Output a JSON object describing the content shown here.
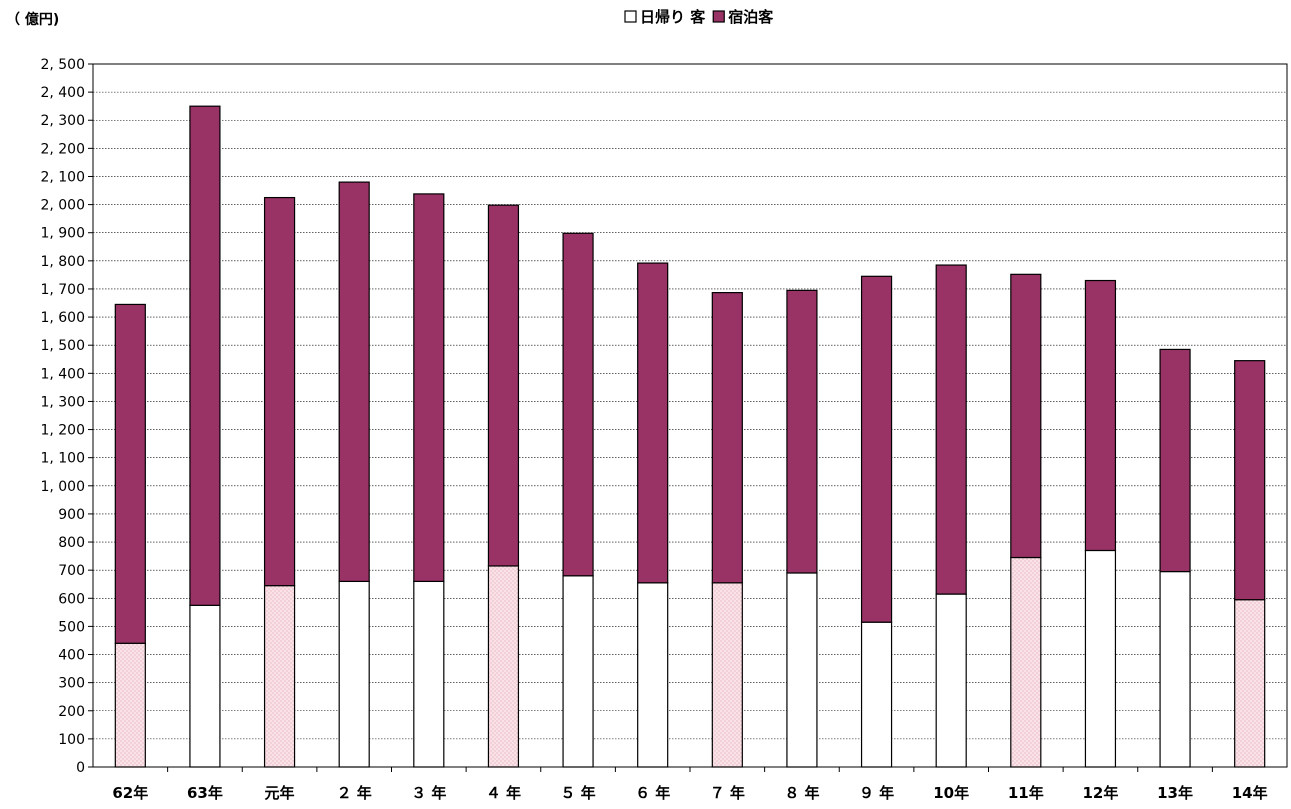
{
  "chart_data": {
    "type": "bar",
    "stacked": true,
    "unit_label": "（ 億円)",
    "categories": [
      "62年",
      "63年",
      "元年",
      "２ 年",
      "３ 年",
      "４ 年",
      "５ 年",
      "６ 年",
      "７ 年",
      "８ 年",
      "９ 年",
      "10年",
      "11年",
      "12年",
      "13年",
      "14年"
    ],
    "series": [
      {
        "name": "日帰り 客",
        "color": "#ffffff",
        "values": [
          440,
          575,
          645,
          660,
          660,
          715,
          680,
          655,
          655,
          690,
          515,
          615,
          745,
          770,
          695,
          595
        ]
      },
      {
        "name": "宿泊客",
        "color": "#993366",
        "values": [
          1205,
          1775,
          1380,
          1420,
          1378,
          1283,
          1218,
          1137,
          1032,
          1005,
          1230,
          1170,
          1007,
          960,
          790,
          850
        ]
      }
    ],
    "highlighted_bars": [
      0,
      2,
      5,
      8,
      12,
      15
    ],
    "highlight_fill": "#f7dde2",
    "ylim": [
      0,
      2500
    ],
    "ytick_step": 100,
    "yticks": [
      "0",
      "100",
      "200",
      "300",
      "400",
      "500",
      "600",
      "700",
      "800",
      "900",
      "1, 000",
      "1, 100",
      "1, 200",
      "1, 300",
      "1, 400",
      "1, 500",
      "1, 600",
      "1, 700",
      "1, 800",
      "1, 900",
      "2, 000",
      "2, 100",
      "2, 200",
      "2, 300",
      "2, 400",
      "2, 500"
    ],
    "grid": true,
    "legend_position": "top-center",
    "xlabel": "",
    "ylabel": ""
  }
}
